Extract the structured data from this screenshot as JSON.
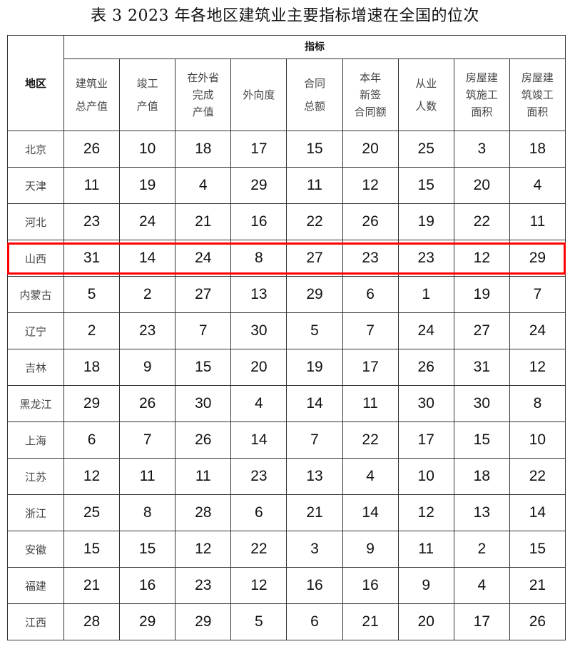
{
  "title": "表 3   2023 年各地区建筑业主要指标增速在全国的位次",
  "table": {
    "region_header": "地区",
    "group_header": "指标",
    "columns": [
      [
        "建筑业",
        "总产值"
      ],
      [
        "竣工",
        "产值"
      ],
      [
        "在外省",
        "完成",
        "产值"
      ],
      [
        "外向度"
      ],
      [
        "合同",
        "总额"
      ],
      [
        "本年",
        "新签",
        "合同额"
      ],
      [
        "从业",
        "人数"
      ],
      [
        "房屋建",
        "筑施工",
        "面积"
      ],
      [
        "房屋建",
        "筑竣工",
        "面积"
      ]
    ],
    "rows": [
      {
        "region": "北京",
        "values": [
          "26",
          "10",
          "18",
          "17",
          "15",
          "20",
          "25",
          "3",
          "18"
        ]
      },
      {
        "region": "天津",
        "values": [
          "11",
          "19",
          "4",
          "29",
          "11",
          "12",
          "15",
          "20",
          "4"
        ]
      },
      {
        "region": "河北",
        "values": [
          "23",
          "24",
          "21",
          "16",
          "22",
          "26",
          "19",
          "22",
          "11"
        ]
      },
      {
        "region": "山西",
        "values": [
          "31",
          "14",
          "24",
          "8",
          "27",
          "23",
          "23",
          "12",
          "29"
        ]
      },
      {
        "region": "内蒙古",
        "values": [
          "5",
          "2",
          "27",
          "13",
          "29",
          "6",
          "1",
          "19",
          "7"
        ]
      },
      {
        "region": "辽宁",
        "values": [
          "2",
          "23",
          "7",
          "30",
          "5",
          "7",
          "24",
          "27",
          "24"
        ]
      },
      {
        "region": "吉林",
        "values": [
          "18",
          "9",
          "15",
          "20",
          "19",
          "17",
          "26",
          "31",
          "12"
        ]
      },
      {
        "region": "黑龙江",
        "values": [
          "29",
          "26",
          "30",
          "4",
          "14",
          "11",
          "30",
          "30",
          "8"
        ]
      },
      {
        "region": "上海",
        "values": [
          "6",
          "7",
          "26",
          "14",
          "7",
          "22",
          "17",
          "15",
          "10"
        ]
      },
      {
        "region": "江苏",
        "values": [
          "12",
          "11",
          "11",
          "23",
          "13",
          "4",
          "10",
          "18",
          "22"
        ]
      },
      {
        "region": "浙江",
        "values": [
          "25",
          "8",
          "28",
          "6",
          "21",
          "14",
          "12",
          "13",
          "14"
        ]
      },
      {
        "region": "安徽",
        "values": [
          "15",
          "15",
          "12",
          "22",
          "3",
          "9",
          "11",
          "2",
          "15"
        ]
      },
      {
        "region": "福建",
        "values": [
          "21",
          "16",
          "23",
          "12",
          "16",
          "16",
          "9",
          "4",
          "21"
        ]
      },
      {
        "region": "江西",
        "values": [
          "28",
          "29",
          "29",
          "5",
          "6",
          "21",
          "20",
          "17",
          "26"
        ]
      }
    ],
    "highlighted_region": "山西",
    "highlight_color": "#ff0000"
  }
}
